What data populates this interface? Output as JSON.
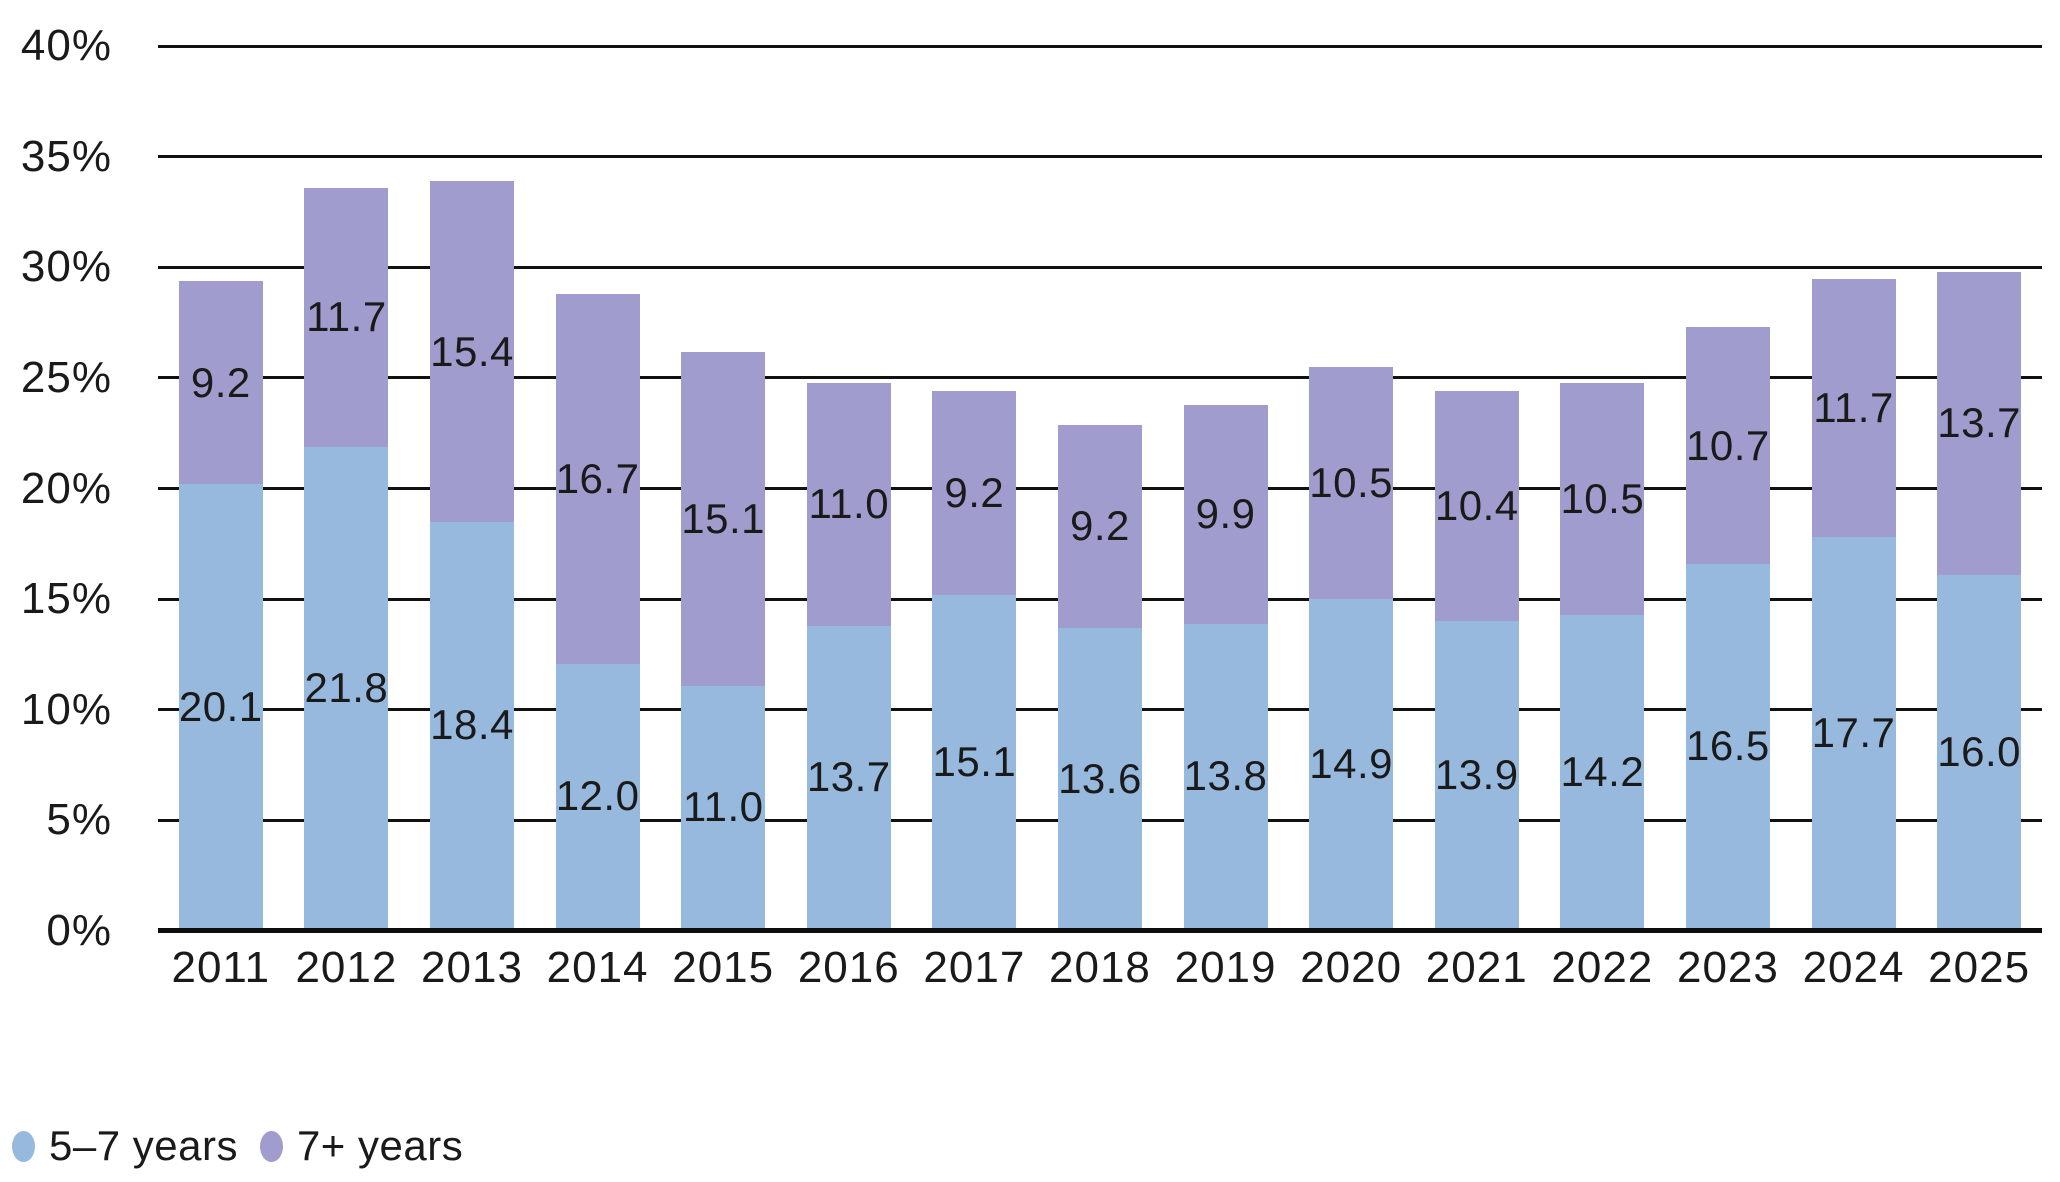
{
  "chart_data": {
    "type": "bar",
    "stacked": true,
    "title": "",
    "xlabel": "",
    "ylabel": "",
    "ylim": [
      0,
      40
    ],
    "ytick_step": 5,
    "ytick_labels": [
      "0%",
      "5%",
      "10%",
      "15%",
      "20%",
      "25%",
      "30%",
      "35%",
      "40%"
    ],
    "grid": true,
    "legend_position": "bottom-left",
    "categories": [
      "2011",
      "2012",
      "2013",
      "2014",
      "2015",
      "2016",
      "2017",
      "2018",
      "2019",
      "2020",
      "2021",
      "2022",
      "2023",
      "2024",
      "2025"
    ],
    "series": [
      {
        "name": "5–7 years",
        "color": "#98b9de",
        "values": [
          20.1,
          21.8,
          18.4,
          12.0,
          11.0,
          13.7,
          15.1,
          13.6,
          13.8,
          14.9,
          13.9,
          14.2,
          16.5,
          17.7,
          16.0
        ]
      },
      {
        "name": "7+ years",
        "color": "#a09ccd",
        "values": [
          9.2,
          11.7,
          15.4,
          16.7,
          15.1,
          11.0,
          9.2,
          9.2,
          9.9,
          10.5,
          10.4,
          10.5,
          10.7,
          11.7,
          13.7
        ]
      }
    ],
    "value_label_decimals": 1,
    "colors": {
      "gridline": "#111111",
      "axis_line": "#0d0d0d",
      "label_text": "#1a1a1a",
      "background": "#ffffff"
    }
  }
}
